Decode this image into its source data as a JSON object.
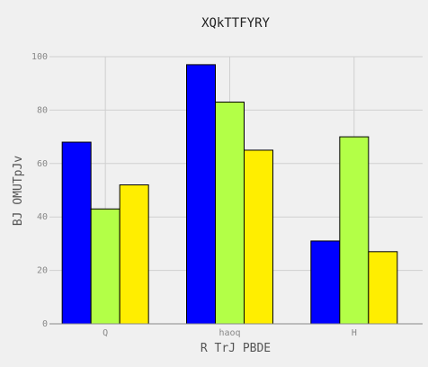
{
  "chart_data": {
    "type": "bar",
    "title": "XQkTTFYRY",
    "xlabel": "R TrJ PBDE",
    "ylabel": "BJ OMUTpJv",
    "categories": [
      "Q",
      "haoq",
      "H"
    ],
    "series": [
      {
        "values": [
          68,
          97,
          31
        ],
        "color": "#0000ff"
      },
      {
        "values": [
          43,
          83,
          70
        ],
        "color": "#b3ff47"
      },
      {
        "values": [
          52,
          65,
          27
        ],
        "color": "#ffee00"
      }
    ],
    "ylim": [
      0,
      100
    ],
    "yticks": [
      "0",
      "20",
      "40",
      "60",
      "80",
      "100"
    ],
    "grid": true,
    "background": "#f0f0f0"
  }
}
